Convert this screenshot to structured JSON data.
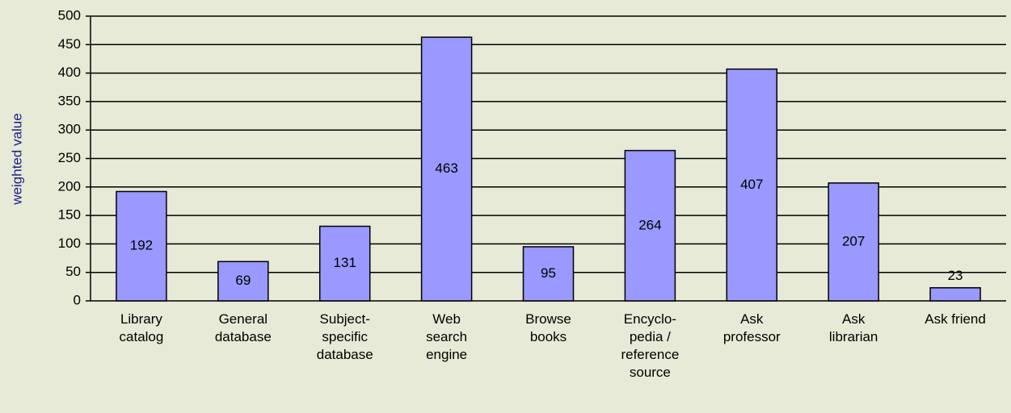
{
  "chart_data": {
    "type": "bar",
    "y_label": "weighted value",
    "categories": [
      "Library\ncatalog",
      "General\ndatabase",
      "Subject-\nspecific\ndatabase",
      "Web\nsearch\nengine",
      "Browse\nbooks",
      "Encyclo-\npedia /\nreference\nsource",
      "Ask\nprofessor",
      "Ask\nlibrarian",
      "Ask friend"
    ],
    "values": [
      192,
      69,
      131,
      463,
      95,
      264,
      407,
      207,
      23
    ],
    "color": "#9999ff",
    "ylim": [
      0,
      500
    ],
    "yticks": [
      0,
      50,
      100,
      150,
      200,
      250,
      300,
      350,
      400,
      450,
      500
    ],
    "grid": true
  }
}
